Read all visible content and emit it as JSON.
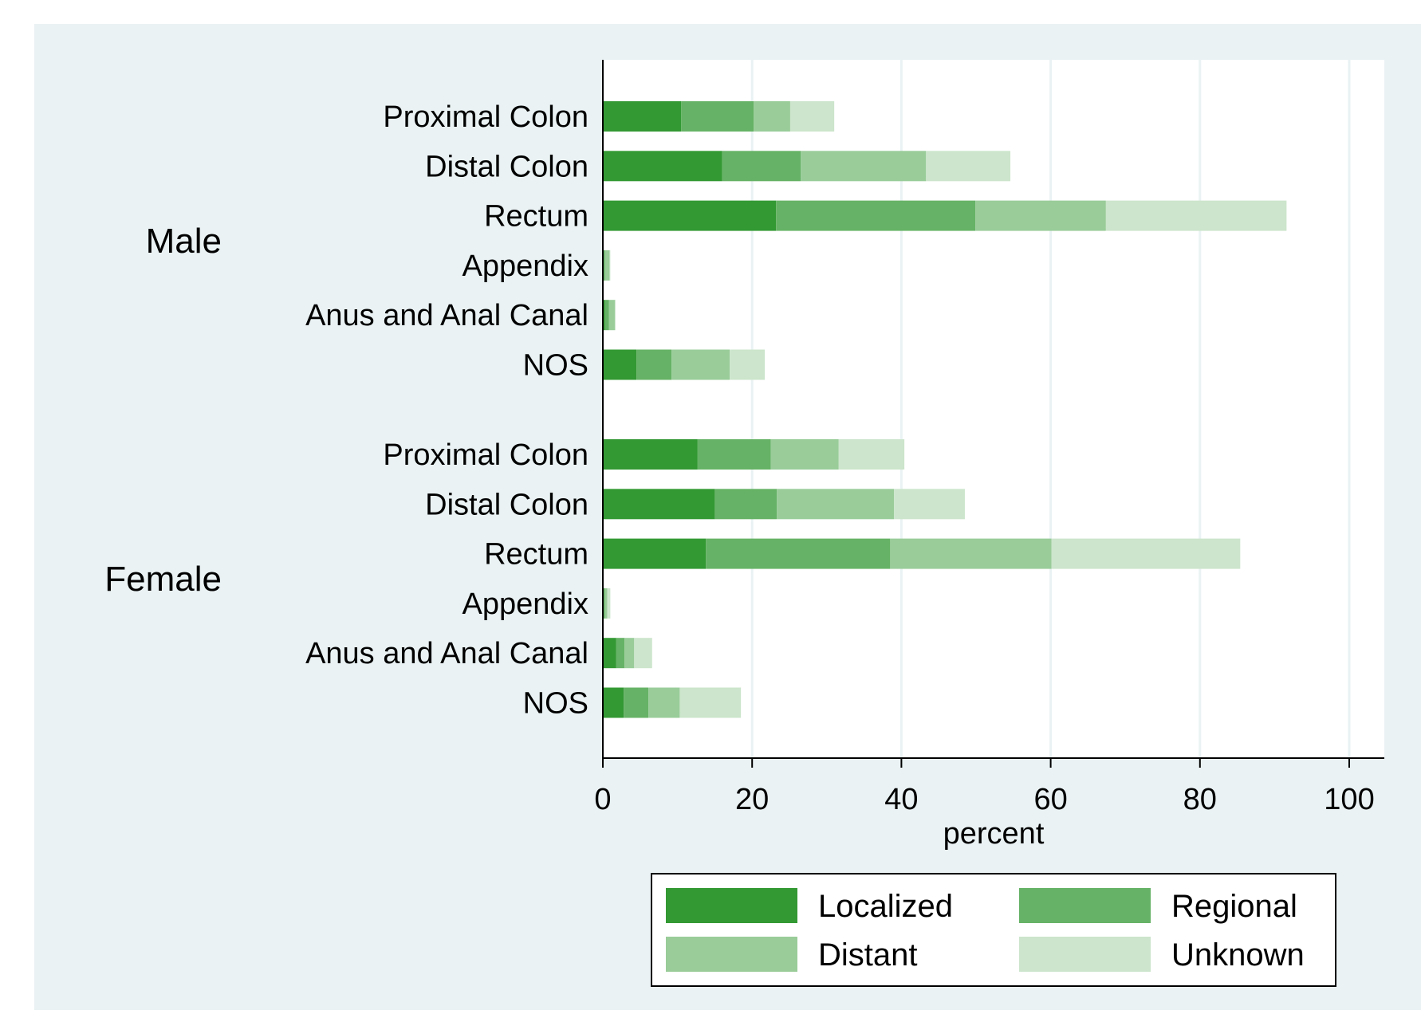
{
  "chart_data": {
    "type": "bar",
    "orientation": "horizontal",
    "stacked": true,
    "title": "",
    "xlabel": "percent",
    "ylabel": "",
    "xlim": [
      0,
      105
    ],
    "xticks": [
      0,
      20,
      40,
      60,
      80,
      100
    ],
    "grid": "vertical",
    "legend_position": "bottom",
    "colors": {
      "background": "#eaf2f3",
      "plot": "#ffffff",
      "grid": "#eaf2f3",
      "Localized": "#339933",
      "Regional": "#66b266",
      "Distant": "#99cc99",
      "Unknown": "#cce5cc"
    },
    "legend": [
      "Localized",
      "Regional",
      "Distant",
      "Unknown"
    ],
    "groups": [
      {
        "name": "Male",
        "categories": [
          "Proximal Colon",
          "Distal Colon",
          "Rectum",
          "Appendix",
          "Anus and Anal Canal",
          "NOS"
        ],
        "series": [
          {
            "name": "Localized",
            "values": [
              10.5,
              16.0,
              23.2,
              0.1,
              0.3,
              4.5
            ]
          },
          {
            "name": "Regional",
            "values": [
              9.7,
              10.5,
              26.7,
              0.2,
              0.5,
              4.7
            ]
          },
          {
            "name": "Distant",
            "values": [
              4.9,
              16.8,
              17.5,
              0.6,
              0.8,
              7.8
            ]
          },
          {
            "name": "Unknown",
            "values": [
              5.9,
              11.3,
              24.2,
              0.1,
              0.1,
              4.7
            ]
          }
        ]
      },
      {
        "name": "Female",
        "categories": [
          "Proximal Colon",
          "Distal Colon",
          "Rectum",
          "Appendix",
          "Anus and Anal Canal",
          "NOS"
        ],
        "series": [
          {
            "name": "Localized",
            "values": [
              12.7,
              15.0,
              13.8,
              0.1,
              1.8,
              2.8
            ]
          },
          {
            "name": "Regional",
            "values": [
              9.8,
              8.3,
              24.7,
              0.2,
              1.1,
              3.3
            ]
          },
          {
            "name": "Distant",
            "values": [
              9.1,
              15.7,
              21.6,
              0.3,
              1.3,
              4.2
            ]
          },
          {
            "name": "Unknown",
            "values": [
              8.8,
              9.5,
              25.3,
              0.4,
              2.4,
              8.2
            ]
          }
        ]
      }
    ]
  }
}
